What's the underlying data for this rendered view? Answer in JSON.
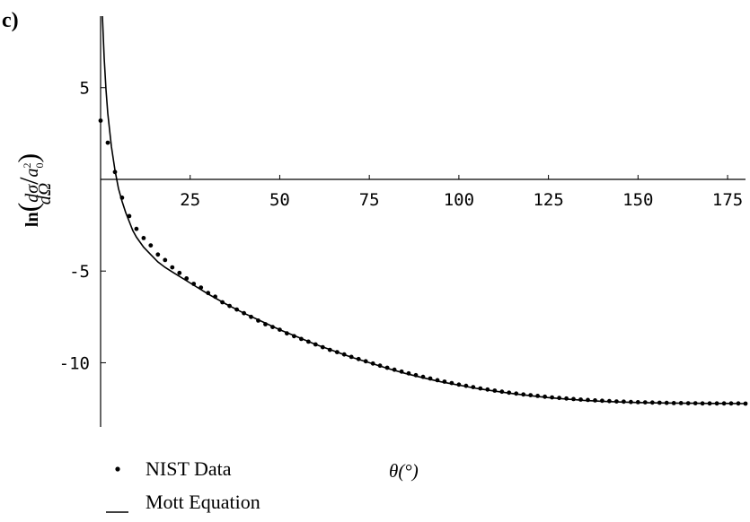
{
  "chart_data": {
    "type": "scatter",
    "panel_label": "c)",
    "title": "",
    "xlabel": "θ(°)",
    "ylabel": {
      "prefix": "ln",
      "numerator": "dσ",
      "denominator": "dΩ",
      "divisor_base": "a",
      "divisor_sup": "2",
      "divisor_sub": "0"
    },
    "xlim": [
      0,
      180
    ],
    "ylim": [
      -13.5,
      8.9
    ],
    "x_ticks": [
      25,
      50,
      75,
      100,
      125,
      150,
      175
    ],
    "x_tick_labels": [
      "25",
      "50",
      "75",
      "100",
      "125",
      "150",
      "175"
    ],
    "y_ticks": [
      5,
      -5,
      -10
    ],
    "y_tick_labels": [
      "5",
      "-5",
      "-10"
    ],
    "grid": false,
    "legend_position": "bottom-left",
    "series": [
      {
        "name": "NIST Data",
        "kind": "scatter",
        "x": [
          0,
          2,
          4,
          6,
          8,
          10,
          12,
          14,
          16,
          18,
          20,
          22,
          24,
          26,
          28,
          30,
          32,
          34,
          36,
          38,
          40,
          42,
          44,
          46,
          48,
          50,
          52,
          54,
          56,
          58,
          60,
          62,
          64,
          66,
          68,
          70,
          72,
          74,
          76,
          78,
          80,
          82,
          84,
          86,
          88,
          90,
          92,
          94,
          96,
          98,
          100,
          102,
          104,
          106,
          108,
          110,
          112,
          114,
          116,
          118,
          120,
          122,
          124,
          126,
          128,
          130,
          132,
          134,
          136,
          138,
          140,
          142,
          144,
          146,
          148,
          150,
          152,
          154,
          156,
          158,
          160,
          162,
          164,
          166,
          168,
          170,
          172,
          174,
          176,
          178,
          180
        ],
        "y": [
          3.2,
          2.0,
          0.4,
          -1.0,
          -2.0,
          -2.7,
          -3.2,
          -3.6,
          -4.1,
          -4.4,
          -4.8,
          -5.1,
          -5.4,
          -5.7,
          -5.9,
          -6.2,
          -6.4,
          -6.7,
          -6.9,
          -7.1,
          -7.3,
          -7.5,
          -7.7,
          -7.9,
          -8.05,
          -8.2,
          -8.4,
          -8.55,
          -8.7,
          -8.85,
          -9.0,
          -9.15,
          -9.3,
          -9.42,
          -9.55,
          -9.68,
          -9.8,
          -9.92,
          -10.04,
          -10.16,
          -10.27,
          -10.38,
          -10.48,
          -10.58,
          -10.68,
          -10.77,
          -10.86,
          -10.95,
          -11.03,
          -11.11,
          -11.19,
          -11.26,
          -11.33,
          -11.4,
          -11.46,
          -11.52,
          -11.58,
          -11.63,
          -11.68,
          -11.73,
          -11.77,
          -11.81,
          -11.85,
          -11.89,
          -11.92,
          -11.95,
          -11.98,
          -12.01,
          -12.03,
          -12.05,
          -12.07,
          -12.09,
          -12.11,
          -12.12,
          -12.14,
          -12.15,
          -12.16,
          -12.17,
          -12.18,
          -12.19,
          -12.2,
          -12.2,
          -12.21,
          -12.21,
          -12.22,
          -12.22,
          -12.22,
          -12.22,
          -12.22,
          -12.22,
          -12.23
        ]
      },
      {
        "name": "Mott Equation",
        "kind": "line",
        "x": [
          0.5,
          1,
          1.5,
          2,
          3,
          4,
          5,
          6,
          7,
          8,
          9,
          10,
          12,
          14,
          16,
          18,
          20,
          25,
          30,
          35,
          40,
          45,
          50,
          55,
          60,
          65,
          70,
          75,
          80,
          85,
          90,
          95,
          100,
          105,
          110,
          115,
          120,
          125,
          130,
          135,
          140,
          145,
          150,
          155,
          160,
          165,
          170,
          175,
          180
        ],
        "y": [
          8.9,
          6.6,
          4.9,
          3.6,
          1.8,
          0.5,
          -0.5,
          -1.2,
          -1.8,
          -2.3,
          -2.8,
          -3.15,
          -3.7,
          -4.1,
          -4.5,
          -4.8,
          -5.05,
          -5.65,
          -6.25,
          -6.8,
          -7.3,
          -7.75,
          -8.2,
          -8.6,
          -9.0,
          -9.35,
          -9.7,
          -10.0,
          -10.3,
          -10.58,
          -10.82,
          -11.04,
          -11.22,
          -11.4,
          -11.55,
          -11.68,
          -11.8,
          -11.9,
          -11.98,
          -12.05,
          -12.1,
          -12.14,
          -12.17,
          -12.19,
          -12.2,
          -12.21,
          -12.22,
          -12.22,
          -12.23
        ]
      }
    ]
  }
}
